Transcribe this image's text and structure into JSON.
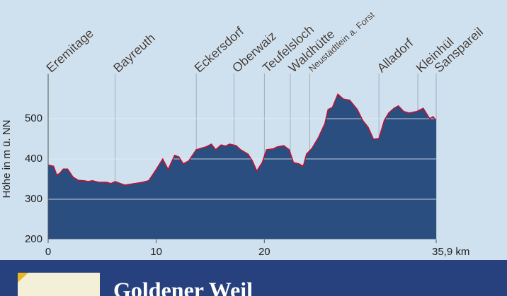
{
  "chart_data": {
    "type": "area",
    "y_label": "Höhe in m ü. NN",
    "x": [
      0,
      0.5,
      0.8,
      1.1,
      1.4,
      1.8,
      2.3,
      2.8,
      3.3,
      3.7,
      4.1,
      4.7,
      5.4,
      5.8,
      6.2,
      6.7,
      7.1,
      8.0,
      8.7,
      9.3,
      10.0,
      10.6,
      11.1,
      11.7,
      12.1,
      12.5,
      13.0,
      13.7,
      14.6,
      15.1,
      15.5,
      16.0,
      16.4,
      16.8,
      17.4,
      17.8,
      18.5,
      18.9,
      19.3,
      19.8,
      20.2,
      20.8,
      21.2,
      21.8,
      22.3,
      22.7,
      23.2,
      23.6,
      23.9,
      24.4,
      25.0,
      25.6,
      25.9,
      26.3,
      26.8,
      27.3,
      27.9,
      28.6,
      29.1,
      29.6,
      30.1,
      30.6,
      31.1,
      31.5,
      32.0,
      32.4,
      32.9,
      33.4,
      34.1,
      34.7,
      35.3,
      35.6,
      35.9
    ],
    "values": [
      385,
      382,
      360,
      365,
      375,
      375,
      355,
      347,
      346,
      344,
      346,
      342,
      342,
      339,
      344,
      339,
      335,
      339,
      342,
      346,
      374,
      400,
      374,
      409,
      405,
      388,
      395,
      423,
      430,
      437,
      423,
      435,
      432,
      437,
      433,
      423,
      412,
      395,
      370,
      391,
      423,
      425,
      430,
      433,
      423,
      391,
      388,
      382,
      412,
      426,
      453,
      488,
      523,
      528,
      561,
      549,
      546,
      523,
      496,
      479,
      449,
      451,
      496,
      514,
      526,
      532,
      518,
      514,
      518,
      526,
      500,
      505,
      496
    ],
    "fill": "#2b4e80",
    "line_color": "#c8102e",
    "xlim": [
      0,
      35.9
    ],
    "ylim": [
      200,
      600
    ],
    "xticks": [
      0,
      10,
      20,
      {
        "value": 35.9,
        "label": "35,9 km"
      }
    ],
    "yticks": [
      200,
      300,
      400,
      500
    ],
    "grid": true,
    "places": [
      {
        "name": "Eremitage",
        "x": 0
      },
      {
        "name": "Bayreuth",
        "x": 6.2
      },
      {
        "name": "Eckersdorf",
        "x": 13.7
      },
      {
        "name": "Oberwaiz",
        "x": 17.2
      },
      {
        "name": "Teufelsloch",
        "x": 20.0
      },
      {
        "name": "Waldhütte",
        "x": 22.4
      },
      {
        "name": "Neustädtlein a. Forst",
        "x": 24.2
      },
      {
        "name": "Alladorf",
        "x": 30.6
      },
      {
        "name": "Kleinhül",
        "x": 34.2
      },
      {
        "name": "Sanspareil",
        "x": 35.9
      }
    ]
  },
  "banner": {
    "title": "Goldener Weil"
  }
}
